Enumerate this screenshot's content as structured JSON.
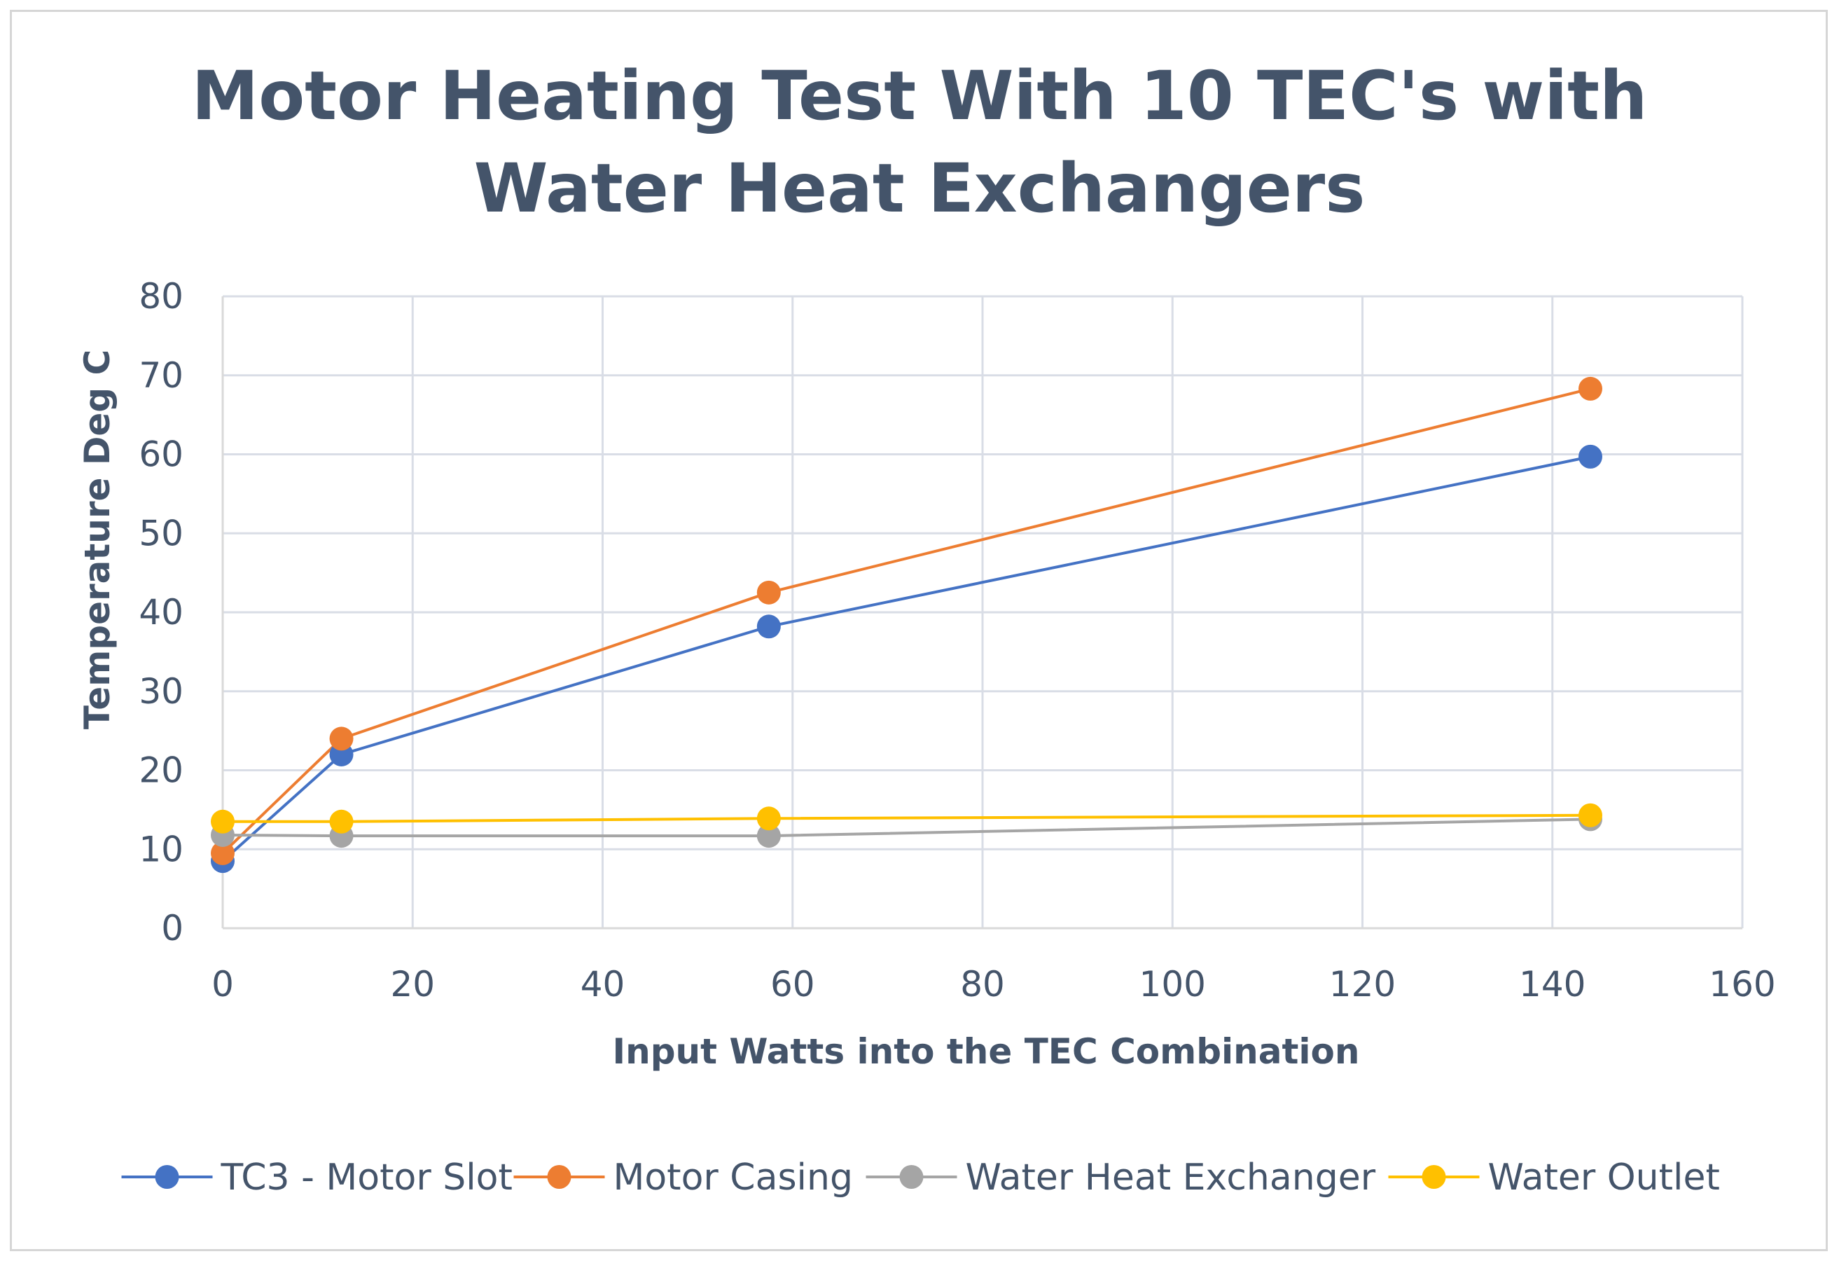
{
  "chart_data": {
    "type": "line",
    "title_lines": [
      "Motor Heating Test With 10 TEC's with",
      "Water Heat Exchangers"
    ],
    "xlabel": "Input Watts into the TEC Combination",
    "ylabel": "Temperature Deg C",
    "xlim": [
      0,
      160
    ],
    "ylim": [
      0,
      80
    ],
    "xticks": [
      0,
      20,
      40,
      60,
      80,
      100,
      120,
      140,
      160
    ],
    "yticks": [
      0,
      10,
      20,
      30,
      40,
      50,
      60,
      70,
      80
    ],
    "grid": true,
    "legend_position": "bottom",
    "x": [
      0,
      12.5,
      57.5,
      144
    ],
    "series": [
      {
        "name": "TC3 - Motor Slot",
        "color": "#4472c4",
        "values": [
          8.5,
          22,
          38.2,
          59.7
        ]
      },
      {
        "name": "Motor Casing",
        "color": "#ed7d31",
        "values": [
          9.5,
          24,
          42.5,
          68.3
        ]
      },
      {
        "name": "Water Heat Exchanger",
        "color": "#a5a5a5",
        "values": [
          11.8,
          11.7,
          11.7,
          13.8
        ]
      },
      {
        "name": "Water Outlet",
        "color": "#ffc000",
        "values": [
          13.5,
          13.5,
          13.9,
          14.3
        ]
      }
    ]
  }
}
